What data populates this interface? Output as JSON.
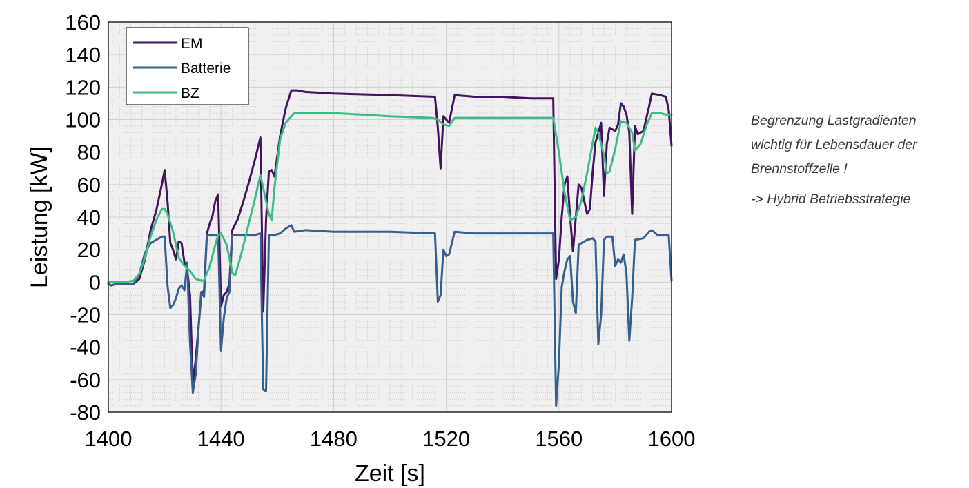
{
  "note": {
    "line1": "Begrenzung Lastgradienten",
    "line2": "wichtig für Lebensdauer der",
    "line3": "Brennstoffzelle !",
    "line4": "-> Hybrid Betriebsstrategie"
  },
  "chart_data": {
    "type": "line",
    "title": "",
    "xlabel": "Zeit [s]",
    "ylabel": "Leistung [kW]",
    "xlim": [
      1400,
      1600
    ],
    "ylim": [
      -80,
      160
    ],
    "xticks": [
      1400,
      1440,
      1480,
      1520,
      1560,
      1600
    ],
    "yticks": [
      -80,
      -60,
      -40,
      -20,
      0,
      20,
      40,
      60,
      80,
      100,
      120,
      140,
      160
    ],
    "grid": true,
    "minor_grid": true,
    "legend_position": "top-left",
    "series": [
      {
        "name": "EM",
        "color": "#44125f",
        "points": [
          [
            1400,
            -1
          ],
          [
            1401,
            -2
          ],
          [
            1403,
            -1
          ],
          [
            1406,
            -1
          ],
          [
            1409,
            -1
          ],
          [
            1411,
            2
          ],
          [
            1413,
            14
          ],
          [
            1415,
            32
          ],
          [
            1417,
            44
          ],
          [
            1419,
            60
          ],
          [
            1420,
            69
          ],
          [
            1421,
            50
          ],
          [
            1422,
            24
          ],
          [
            1423,
            20
          ],
          [
            1424,
            14
          ],
          [
            1425,
            25
          ],
          [
            1426,
            24
          ],
          [
            1427,
            12
          ],
          [
            1428,
            8
          ],
          [
            1429,
            -8
          ],
          [
            1430,
            -62
          ],
          [
            1431,
            -48
          ],
          [
            1433,
            -8
          ],
          [
            1434,
            -5
          ],
          [
            1435,
            30
          ],
          [
            1436,
            36
          ],
          [
            1437,
            41
          ],
          [
            1438,
            50
          ],
          [
            1439,
            54
          ],
          [
            1440,
            -15
          ],
          [
            1441,
            -8
          ],
          [
            1442,
            -6
          ],
          [
            1443,
            -1
          ],
          [
            1444,
            32
          ],
          [
            1446,
            39
          ],
          [
            1448,
            50
          ],
          [
            1450,
            62
          ],
          [
            1452,
            75
          ],
          [
            1454,
            89
          ],
          [
            1455,
            -18
          ],
          [
            1456,
            38
          ],
          [
            1457,
            68
          ],
          [
            1458,
            69
          ],
          [
            1459,
            65
          ],
          [
            1461,
            90
          ],
          [
            1463,
            107
          ],
          [
            1465,
            118
          ],
          [
            1467,
            118
          ],
          [
            1470,
            117
          ],
          [
            1480,
            116
          ],
          [
            1500,
            115
          ],
          [
            1516,
            114
          ],
          [
            1517,
            95
          ],
          [
            1518,
            70
          ],
          [
            1519,
            102
          ],
          [
            1520,
            100
          ],
          [
            1521,
            98
          ],
          [
            1523,
            115
          ],
          [
            1530,
            114
          ],
          [
            1540,
            114
          ],
          [
            1550,
            113
          ],
          [
            1558,
            113
          ],
          [
            1559,
            2
          ],
          [
            1560,
            14
          ],
          [
            1561,
            40
          ],
          [
            1562,
            60
          ],
          [
            1563,
            65
          ],
          [
            1564,
            40
          ],
          [
            1565,
            19
          ],
          [
            1566,
            40
          ],
          [
            1567,
            60
          ],
          [
            1568,
            58
          ],
          [
            1570,
            42
          ],
          [
            1571,
            45
          ],
          [
            1572,
            68
          ],
          [
            1573,
            86
          ],
          [
            1574,
            92
          ],
          [
            1575,
            98
          ],
          [
            1576,
            53
          ],
          [
            1577,
            85
          ],
          [
            1578,
            95
          ],
          [
            1580,
            93
          ],
          [
            1581,
            97
          ],
          [
            1582,
            110
          ],
          [
            1583,
            108
          ],
          [
            1584,
            103
          ],
          [
            1585,
            92
          ],
          [
            1586,
            42
          ],
          [
            1587,
            96
          ],
          [
            1588,
            91
          ],
          [
            1590,
            93
          ],
          [
            1592,
            108
          ],
          [
            1593,
            116
          ],
          [
            1596,
            115
          ],
          [
            1598,
            114
          ],
          [
            1599,
            106
          ],
          [
            1600,
            84
          ]
        ]
      },
      {
        "name": "Batterie",
        "color": "#355f8d",
        "points": [
          [
            1400,
            -1
          ],
          [
            1401,
            -2
          ],
          [
            1403,
            -1
          ],
          [
            1406,
            -1
          ],
          [
            1409,
            -1
          ],
          [
            1411,
            5
          ],
          [
            1413,
            18
          ],
          [
            1415,
            24
          ],
          [
            1417,
            26
          ],
          [
            1419,
            28
          ],
          [
            1420,
            28
          ],
          [
            1421,
            -2
          ],
          [
            1422,
            -16
          ],
          [
            1423,
            -14
          ],
          [
            1424,
            -10
          ],
          [
            1425,
            -4
          ],
          [
            1426,
            -2
          ],
          [
            1427,
            -5
          ],
          [
            1428,
            12
          ],
          [
            1429,
            -37
          ],
          [
            1430,
            -68
          ],
          [
            1431,
            -57
          ],
          [
            1432,
            -29
          ],
          [
            1433,
            -6
          ],
          [
            1434,
            -9
          ],
          [
            1435,
            29
          ],
          [
            1437,
            29
          ],
          [
            1439,
            29
          ],
          [
            1440,
            -42
          ],
          [
            1441,
            -22
          ],
          [
            1442,
            -10
          ],
          [
            1443,
            -6
          ],
          [
            1444,
            29
          ],
          [
            1446,
            29
          ],
          [
            1449,
            29
          ],
          [
            1452,
            29
          ],
          [
            1454,
            30
          ],
          [
            1455,
            -66
          ],
          [
            1456,
            -67
          ],
          [
            1457,
            29
          ],
          [
            1459,
            29
          ],
          [
            1461,
            30
          ],
          [
            1463,
            33
          ],
          [
            1465,
            35
          ],
          [
            1466,
            31
          ],
          [
            1470,
            32
          ],
          [
            1480,
            31
          ],
          [
            1500,
            31
          ],
          [
            1516,
            30
          ],
          [
            1517,
            -12
          ],
          [
            1518,
            -8
          ],
          [
            1519,
            20
          ],
          [
            1520,
            16
          ],
          [
            1521,
            17
          ],
          [
            1523,
            31
          ],
          [
            1530,
            30
          ],
          [
            1540,
            30
          ],
          [
            1550,
            30
          ],
          [
            1558,
            30
          ],
          [
            1559,
            -76
          ],
          [
            1560,
            -50
          ],
          [
            1561,
            -3
          ],
          [
            1562,
            7
          ],
          [
            1563,
            14
          ],
          [
            1564,
            16
          ],
          [
            1565,
            -12
          ],
          [
            1566,
            -19
          ],
          [
            1567,
            23
          ],
          [
            1570,
            26
          ],
          [
            1572,
            27
          ],
          [
            1573,
            25
          ],
          [
            1574,
            -38
          ],
          [
            1575,
            -20
          ],
          [
            1576,
            26
          ],
          [
            1577,
            28
          ],
          [
            1579,
            28
          ],
          [
            1580,
            10
          ],
          [
            1581,
            14
          ],
          [
            1582,
            12
          ],
          [
            1583,
            17
          ],
          [
            1584,
            5
          ],
          [
            1585,
            -36
          ],
          [
            1586,
            -10
          ],
          [
            1587,
            26
          ],
          [
            1590,
            27
          ],
          [
            1592,
            31
          ],
          [
            1593,
            32
          ],
          [
            1595,
            29
          ],
          [
            1599,
            29
          ],
          [
            1600,
            1
          ]
        ]
      },
      {
        "name": "BZ",
        "color": "#3cbc83",
        "points": [
          [
            1400,
            0
          ],
          [
            1406,
            0
          ],
          [
            1409,
            1
          ],
          [
            1411,
            5
          ],
          [
            1413,
            15
          ],
          [
            1415,
            28
          ],
          [
            1417,
            38
          ],
          [
            1419,
            45
          ],
          [
            1420,
            45
          ],
          [
            1421,
            42
          ],
          [
            1423,
            31
          ],
          [
            1425,
            15
          ],
          [
            1427,
            10
          ],
          [
            1429,
            7
          ],
          [
            1431,
            2
          ],
          [
            1433,
            1
          ],
          [
            1434,
            1
          ],
          [
            1436,
            10
          ],
          [
            1438,
            23
          ],
          [
            1439,
            29
          ],
          [
            1440,
            30
          ],
          [
            1442,
            23
          ],
          [
            1444,
            6
          ],
          [
            1445,
            4
          ],
          [
            1447,
            16
          ],
          [
            1450,
            37
          ],
          [
            1452,
            51
          ],
          [
            1454,
            66
          ],
          [
            1455,
            58
          ],
          [
            1457,
            42
          ],
          [
            1458,
            38
          ],
          [
            1459,
            58
          ],
          [
            1461,
            88
          ],
          [
            1463,
            98
          ],
          [
            1466,
            104
          ],
          [
            1470,
            104
          ],
          [
            1480,
            104
          ],
          [
            1490,
            103
          ],
          [
            1500,
            102
          ],
          [
            1515,
            101
          ],
          [
            1517,
            100
          ],
          [
            1519,
            97
          ],
          [
            1521,
            96
          ],
          [
            1523,
            101
          ],
          [
            1540,
            101
          ],
          [
            1558,
            101
          ],
          [
            1560,
            80
          ],
          [
            1562,
            55
          ],
          [
            1564,
            38
          ],
          [
            1566,
            40
          ],
          [
            1568,
            50
          ],
          [
            1570,
            67
          ],
          [
            1573,
            95
          ],
          [
            1574,
            92
          ],
          [
            1576,
            78
          ],
          [
            1577,
            67
          ],
          [
            1578,
            68
          ],
          [
            1580,
            82
          ],
          [
            1582,
            99
          ],
          [
            1584,
            98
          ],
          [
            1586,
            92
          ],
          [
            1587,
            81
          ],
          [
            1589,
            85
          ],
          [
            1591,
            96
          ],
          [
            1593,
            104
          ],
          [
            1596,
            104
          ],
          [
            1598,
            103
          ],
          [
            1600,
            103
          ]
        ]
      }
    ]
  }
}
